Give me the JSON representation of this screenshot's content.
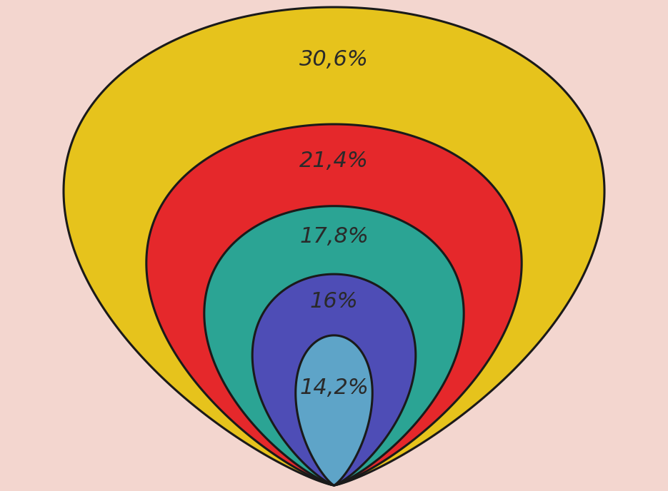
{
  "chart_data": {
    "type": "nested",
    "values": [
      30.6,
      21.4,
      17.8,
      16,
      14.2
    ],
    "value_labels": [
      "30,6%",
      "21,4%",
      "17,8%",
      "16%",
      "14,2%"
    ],
    "colors": [
      "#e6c31c",
      "#e5282b",
      "#2ba494",
      "#4e4db6",
      "#5ea4c8"
    ],
    "data_labels": true
  }
}
